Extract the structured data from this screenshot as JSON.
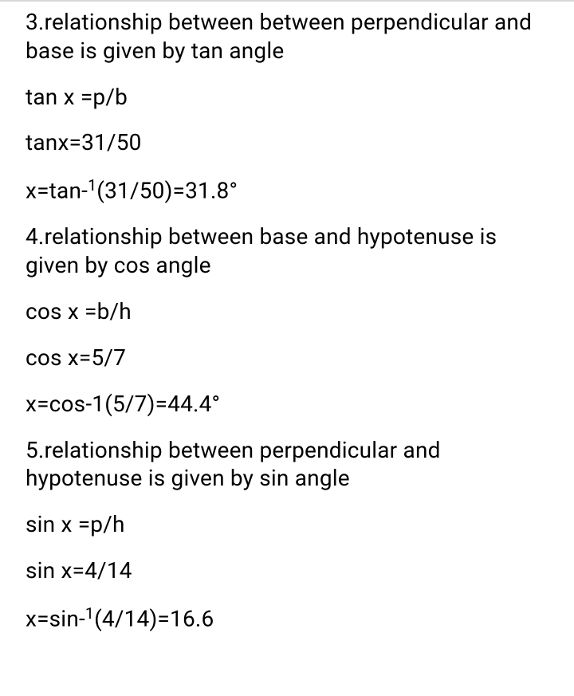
{
  "content": {
    "colors": {
      "background": "#ffffff",
      "text": "#000000",
      "topline": "#d8d8d8"
    },
    "typography": {
      "fontsize": 28,
      "lineheight": 1.28
    },
    "lines": {
      "p1": "3.relationship between between perpendicular and base is given by tan angle",
      "p2": "tan x =p/b",
      "p3": "tanx=31/50",
      "p4_pre": "x=tan-",
      "p4_sup": "1",
      "p4_post": "(31/50)=31.8°",
      "p5": "4.relationship between base and hypotenuse is given by cos angle",
      "p6": "cos x =b/h",
      "p7": "cos x=5/7",
      "p8": "x=cos-1(5/7)=44.4°",
      "p9": "5.relationship between perpendicular and hypotenuse is given by sin angle",
      "p10": "sin x =p/h",
      "p11": "sin x=4/14",
      "p12_pre": "x=sin-",
      "p12_sup": "1",
      "p12_post": "(4/14)=16.6"
    }
  }
}
